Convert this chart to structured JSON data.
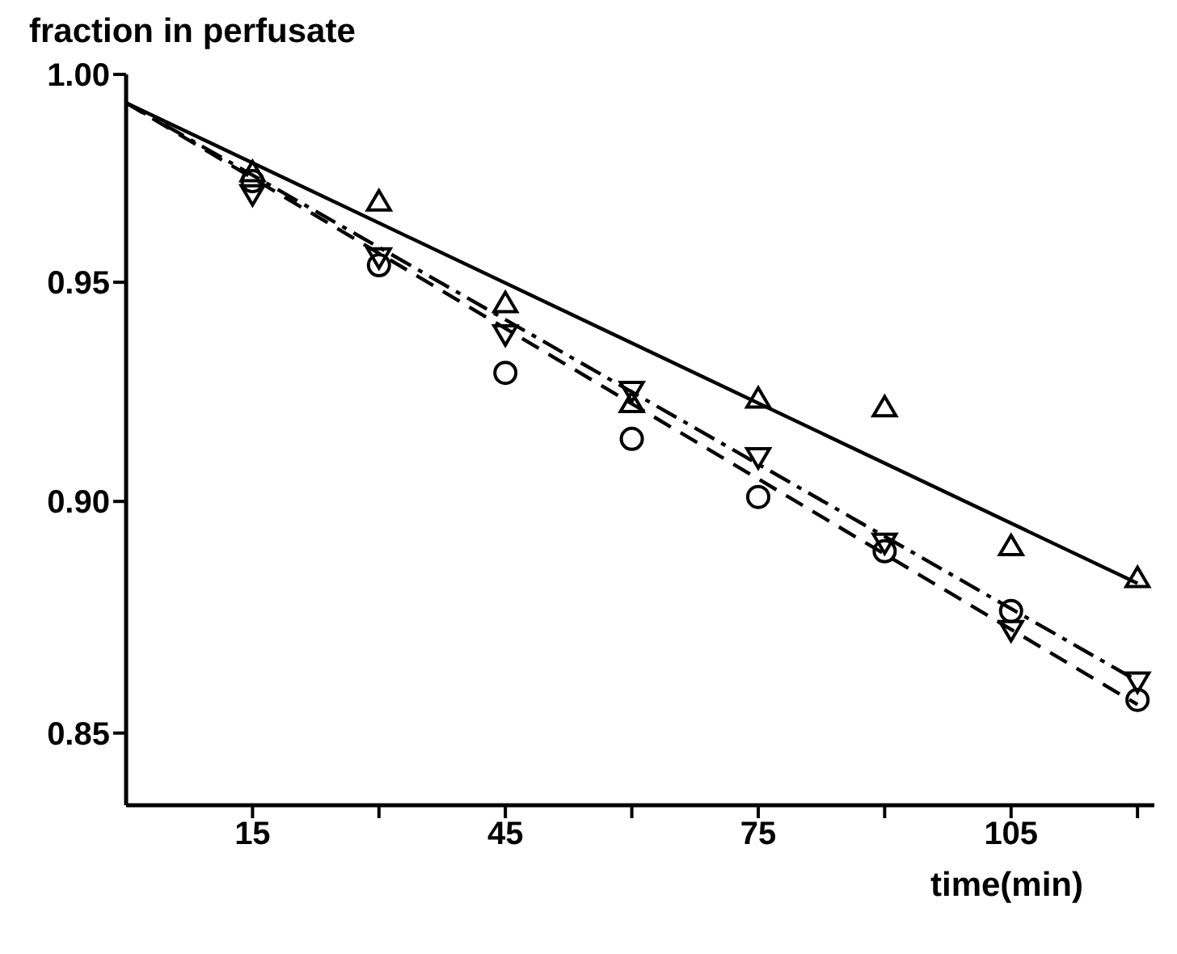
{
  "chart_data": {
    "type": "scatter",
    "xlabel": "time(min)",
    "ylabel": "fraction in perfusate",
    "xlim": [
      0,
      122
    ],
    "xticks": [
      15,
      {
        "value": 30,
        "label": null
      },
      45,
      {
        "value": 60,
        "label": null
      },
      75,
      {
        "value": 90,
        "label": null
      },
      105,
      {
        "value": 120,
        "label": null
      }
    ],
    "ylim": [
      0.835,
      1.0
    ],
    "yticks": [
      {
        "value": 1.0,
        "label": "1.00"
      },
      0.95,
      {
        "value": 0.9,
        "label": "0.90"
      },
      0.85
    ],
    "log": "y",
    "grid": false,
    "legend": false,
    "series": [
      {
        "type": "scatter",
        "color": "#000000",
        "marker": "triangle",
        "x": [
          15,
          30,
          45,
          60,
          75,
          90,
          105,
          120
        ],
        "values": [
          0.976,
          0.969,
          0.945,
          0.922,
          0.923,
          0.921,
          0.89,
          0.883
        ]
      },
      {
        "type": "scatter",
        "color": "#000000",
        "marker": "triangle-down",
        "x": [
          15,
          30,
          45,
          60,
          75,
          90,
          105,
          120
        ],
        "values": [
          0.971,
          0.956,
          0.938,
          0.925,
          0.91,
          0.891,
          0.872,
          0.861
        ]
      },
      {
        "type": "scatter",
        "color": "#000000",
        "marker": "circle",
        "x": [
          15,
          30,
          45,
          60,
          75,
          90,
          105,
          120
        ],
        "values": [
          0.974,
          0.954,
          0.929,
          0.914,
          0.901,
          0.889,
          0.876,
          0.857
        ]
      },
      {
        "type": "line",
        "color": "#000000",
        "line_style": "solid",
        "marker": "none",
        "x": [
          0,
          120
        ],
        "values": [
          0.993,
          0.882
        ]
      },
      {
        "type": "line",
        "color": "#000000",
        "line_style": "dashed",
        "marker": "none",
        "x": [
          0,
          120
        ],
        "values": [
          0.993,
          0.856
        ]
      },
      {
        "type": "line",
        "color": "#000000",
        "line_style": "dashdot",
        "marker": "none",
        "x": [
          0,
          120
        ],
        "values": [
          0.993,
          0.861
        ]
      }
    ]
  }
}
